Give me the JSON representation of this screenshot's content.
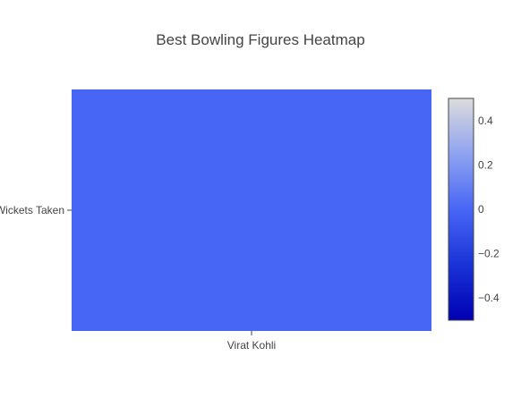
{
  "chart_data": {
    "type": "heatmap",
    "title": "Best Bowling Figures Heatmap",
    "x_categories": [
      "Virat Kohli"
    ],
    "y_categories": [
      "Wickets Taken"
    ],
    "z": [
      [
        0
      ]
    ],
    "colorscale": {
      "range": [
        -0.5,
        0.5
      ],
      "stops": [
        [
          0.0,
          "#0000b3"
        ],
        [
          0.25,
          "#1a33d6"
        ],
        [
          0.5,
          "#4766f5"
        ],
        [
          0.75,
          "#8fa3f0"
        ],
        [
          1.0,
          "#dcdcdc"
        ]
      ],
      "ticks": [
        {
          "value": 0.4,
          "label": "0.4"
        },
        {
          "value": 0.2,
          "label": "0.2"
        },
        {
          "value": 0,
          "label": "0"
        },
        {
          "value": -0.2,
          "label": "−0.2"
        },
        {
          "value": -0.4,
          "label": "−0.4"
        }
      ]
    },
    "colors": {
      "title": "#444444",
      "text": "#444444",
      "axis_line": "#444444"
    }
  }
}
